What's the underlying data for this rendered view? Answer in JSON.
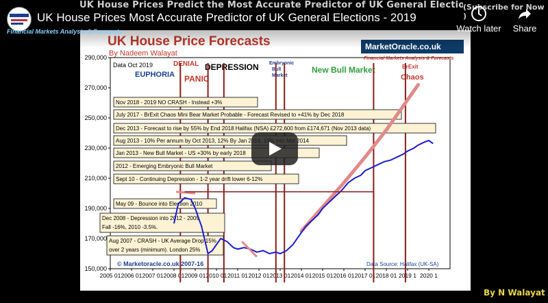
{
  "video": {
    "title": "UK House Prices Most Accurate Predictor of UK General Elections - 2019",
    "banner_text": "UK House Prices Predict the Most Accurate Predictor of UK General Elections",
    "subscribe_text": "(Subscribe for Now )",
    "channel_strip": "Financial Markets Analysis & Forecasts",
    "watch_later_label": "Watch later",
    "share_label": "Share",
    "credit": "By N Walayat"
  },
  "chart_data": {
    "type": "line",
    "title": "UK House Price Forecasts",
    "subtitle": "By Nadeem Walayat",
    "date_label": "Data Oct 2019",
    "logo_text": "MarketOracle.co.uk",
    "logo_subtext": "Financial Markets Analysis & Forecasts",
    "source": "Data Source: Halifax (UK-SA)",
    "copyright": "© Marketoracle.co.uk 2007-16",
    "ylim": [
      150000,
      290000
    ],
    "yticks": [
      "150,000",
      "170,000",
      "190,000",
      "210,000",
      "230,000",
      "250,000",
      "270,000",
      "290,000"
    ],
    "xlim": [
      2005,
      2021
    ],
    "xticks": [
      "2005 01",
      "2006 01",
      "2007 01",
      "2008 01",
      "2009 01",
      "2010 01",
      "2011 01",
      "2012 01",
      "2013 01",
      "2014 01",
      "2015 01",
      "2016 01",
      "2017 01",
      "2018 01",
      "2019 1",
      "2020 1"
    ],
    "phases": [
      {
        "label": "EUPHORIA",
        "color": "#1b3f8f"
      },
      {
        "label": "DENIAL",
        "color": "#c0392b"
      },
      {
        "label": "PANIC",
        "color": "#c0392b"
      },
      {
        "label": "DEPRESSION",
        "color": "#000000"
      },
      {
        "label": "Embryonic",
        "color": "#1b3f8f"
      },
      {
        "label": "Bull",
        "color": "#1b3f8f"
      },
      {
        "label": "Market",
        "color": "#1b3f8f"
      },
      {
        "label": "New Bull Market",
        "color": "#2e9e3e"
      },
      {
        "label": "BrExit",
        "color": "#c0392b"
      },
      {
        "label": "Chaos",
        "color": "#c0392b"
      }
    ],
    "annotations": [
      "Nov 2018 - 2019 NO CRASH - Instead +3%",
      "July 2017 - BrExit Chaos Mini Bear Market Probable - Forecast Revised to +41% by Dec 2018",
      "Dec 2013 - Forecast to rise by 55% by End 2018 Halifax (NSA) £272,600 from £174,671 (Nov 2013 data)",
      "Aug 2013 - 10% Per annum by Oct 2013, 12% By Jan 2014, 10% into Mid 2014",
      "Jan 2013 - New Bull Market - US +30% by early 2018",
      "2012 - Emerging Embryonic Bull Market",
      "Sept 10 - Continuing Depression - 1-2 year drift lower 6-12%",
      "May 09 - Bounce into Election 2010",
      "Dec 2008 - Depression into 2012 - 2009",
      "Fall -16%, 2010 -3.5%.",
      "Aug 2007 - CRASH - UK Average Drop 15%",
      "over 2 years (minimum). London 25%"
    ],
    "election_years": [
      2008.3,
      2009.6,
      2010.35,
      2012.8,
      2013.2,
      2017.4,
      2018.9
    ],
    "series": [
      {
        "name": "Halifax",
        "color": "#1a1ad0",
        "x": [
          2008.0,
          2008.2,
          2008.5,
          2008.8,
          2009.0,
          2009.3,
          2009.6,
          2009.8,
          2010.0,
          2010.2,
          2010.5,
          2010.8,
          2011.0,
          2011.3,
          2011.6,
          2011.9,
          2012.2,
          2012.5,
          2012.8,
          2013.0,
          2013.3,
          2013.6,
          2013.9,
          2014.2,
          2014.5,
          2014.8,
          2015.0,
          2015.3,
          2015.6,
          2015.9,
          2016.2,
          2016.5,
          2016.8,
          2017.0,
          2017.3,
          2017.6,
          2017.9,
          2018.2,
          2018.5,
          2018.8,
          2019.0,
          2019.3,
          2019.5,
          2019.8,
          2020.0,
          2020.2
        ],
        "y": [
          180000,
          193000,
          197000,
          196000,
          190000,
          178000,
          160000,
          162000,
          166000,
          170000,
          168000,
          164000,
          163000,
          164000,
          163000,
          161000,
          162000,
          160000,
          161000,
          160000,
          162000,
          166000,
          172000,
          178000,
          182000,
          186000,
          190000,
          194000,
          198000,
          202000,
          207000,
          210000,
          212000,
          215000,
          217000,
          219000,
          221000,
          222000,
          224000,
          226000,
          228000,
          230000,
          232000,
          234000,
          235000,
          233000
        ]
      },
      {
        "name": "Forecast",
        "color": "#e08a8a",
        "x": [
          2014.0,
          2015.0,
          2016.0,
          2017.0,
          2018.0,
          2018.8,
          2019.5
        ],
        "y": [
          175000,
          191000,
          207000,
          224000,
          242000,
          258000,
          272000
        ]
      }
    ]
  }
}
